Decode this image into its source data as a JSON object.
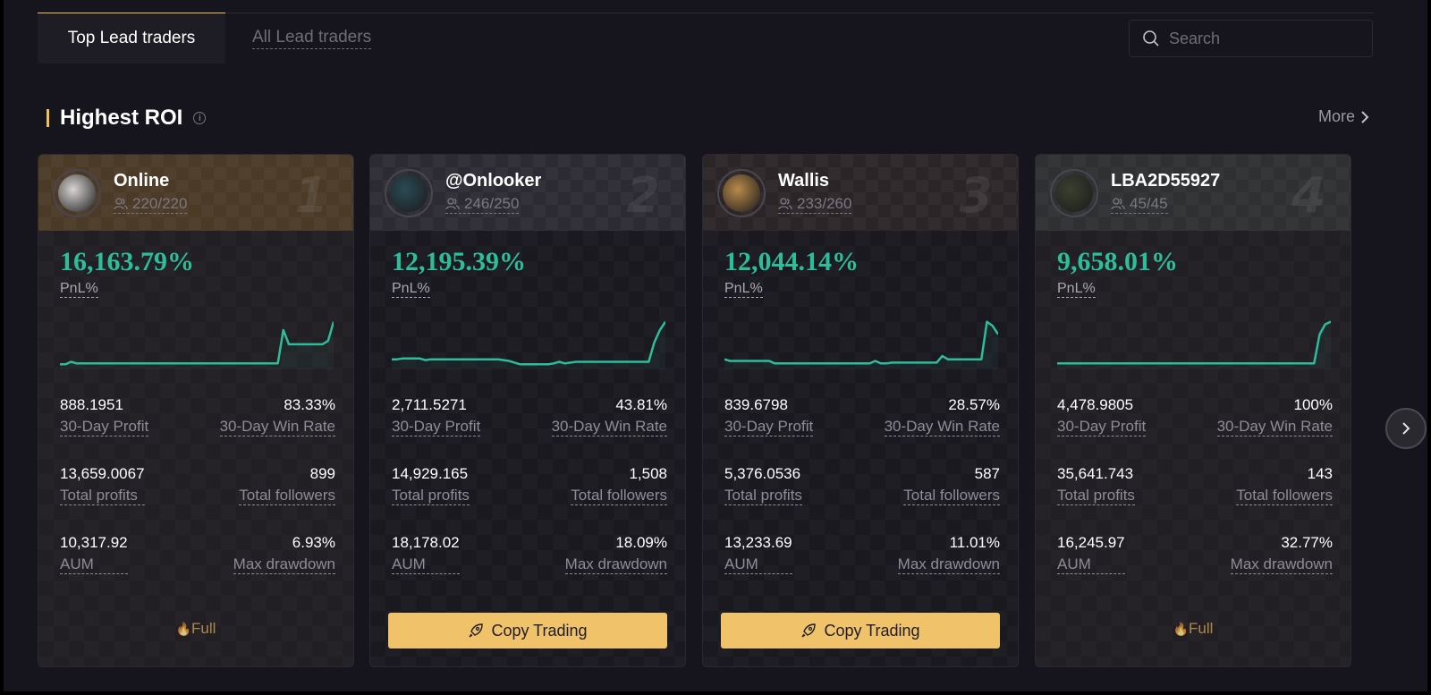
{
  "tabs": [
    {
      "label": "Top Lead traders",
      "active": true
    },
    {
      "label": "All Lead traders",
      "active": false
    }
  ],
  "search": {
    "placeholder": "Search",
    "value": "",
    "icon": "search-icon"
  },
  "section": {
    "title": "Highest ROI",
    "info_icon": "info-icon",
    "more_label": "More",
    "accent": "#f0c05a"
  },
  "colors": {
    "positive": "#2ebd9b",
    "accent": "#f0c36a",
    "full": "#b0894a"
  },
  "labels": {
    "pnl": "PnL%",
    "profit_30d": "30-Day Profit",
    "win_rate_30d": "30-Day Win Rate",
    "total_profits": "Total profits",
    "total_followers": "Total followers",
    "aum": "AUM",
    "max_drawdown": "Max drawdown"
  },
  "cards": [
    {
      "rank": "1",
      "name": "Online",
      "followers": "220/220",
      "head_color": "#4a3a26",
      "avatar_color": "#d9d3d3",
      "roi": "16,163.79%",
      "profit_30d": "888.1951",
      "win_rate_30d": "83.33%",
      "total_profits": "13,659.0067",
      "total_followers": "899",
      "aum": "10,317.92",
      "max_drawdown": "6.93%",
      "action": {
        "type": "full",
        "label": "Full"
      },
      "sparkline": [
        4,
        4,
        7,
        5,
        5,
        5,
        5,
        5,
        5,
        5,
        5,
        5,
        5,
        5,
        5,
        5,
        5,
        5,
        5,
        5,
        5,
        5,
        5,
        5,
        5,
        5,
        5,
        5,
        5,
        5,
        5,
        5,
        5,
        5,
        5,
        5,
        5,
        5,
        5,
        5,
        45,
        28,
        28,
        28,
        28,
        28,
        28,
        28,
        32,
        55
      ]
    },
    {
      "rank": "2",
      "name": "@Onlooker",
      "followers": "246/250",
      "head_color": "#2c2a33",
      "avatar_color": "#2b4a55",
      "roi": "12,195.39%",
      "profit_30d": "2,711.5271",
      "win_rate_30d": "43.81%",
      "total_profits": "14,929.165",
      "total_followers": "1,508",
      "aum": "18,178.02",
      "max_drawdown": "18.09%",
      "action": {
        "type": "copy",
        "label": "Copy Trading"
      },
      "sparkline": [
        10,
        10,
        11,
        11,
        11,
        11,
        9,
        10,
        10,
        10,
        10,
        10,
        10,
        10,
        10,
        10,
        10,
        10,
        10,
        10,
        9,
        8,
        6,
        4,
        4,
        4,
        4,
        4,
        4,
        5,
        7,
        5,
        6,
        7,
        7,
        7,
        7,
        7,
        7,
        7,
        7,
        7,
        7,
        7,
        7,
        7,
        7,
        30,
        45,
        55
      ]
    },
    {
      "rank": "3",
      "name": "Wallis",
      "followers": "233/260",
      "head_color": "#2c2528",
      "avatar_color": "#b88a4a",
      "roi": "12,044.14%",
      "profit_30d": "839.6798",
      "win_rate_30d": "28.57%",
      "total_profits": "5,376.0536",
      "total_followers": "587",
      "aum": "13,233.69",
      "max_drawdown": "11.01%",
      "action": {
        "type": "copy",
        "label": "Copy Trading"
      },
      "sparkline": [
        10,
        8,
        8,
        8,
        8,
        8,
        8,
        8,
        8,
        5,
        5,
        5,
        5,
        5,
        5,
        5,
        5,
        5,
        5,
        5,
        5,
        5,
        5,
        5,
        5,
        5,
        5,
        8,
        5,
        5,
        6,
        6,
        6,
        6,
        6,
        6,
        6,
        6,
        6,
        14,
        10,
        10,
        10,
        10,
        10,
        10,
        10,
        55,
        50,
        40
      ]
    },
    {
      "rank": "4",
      "name": "LBA2D55927",
      "followers": "45/45",
      "head_color": "#2e3032",
      "avatar_color": "#3a4030",
      "roi": "9,658.01%",
      "profit_30d": "4,478.9805",
      "win_rate_30d": "100%",
      "total_profits": "35,641.743",
      "total_followers": "143",
      "aum": "16,245.97",
      "max_drawdown": "32.77%",
      "action": {
        "type": "full",
        "label": "Full"
      },
      "sparkline": [
        5,
        5,
        5,
        5,
        5,
        5,
        5,
        5,
        5,
        5,
        5,
        5,
        5,
        5,
        5,
        5,
        5,
        5,
        5,
        5,
        5,
        5,
        5,
        5,
        5,
        5,
        5,
        5,
        5,
        5,
        5,
        5,
        5,
        5,
        5,
        5,
        5,
        5,
        5,
        5,
        5,
        5,
        5,
        5,
        5,
        5,
        5,
        40,
        52,
        55
      ]
    }
  ],
  "carousel": {
    "next_icon": "chevron-right-icon"
  }
}
